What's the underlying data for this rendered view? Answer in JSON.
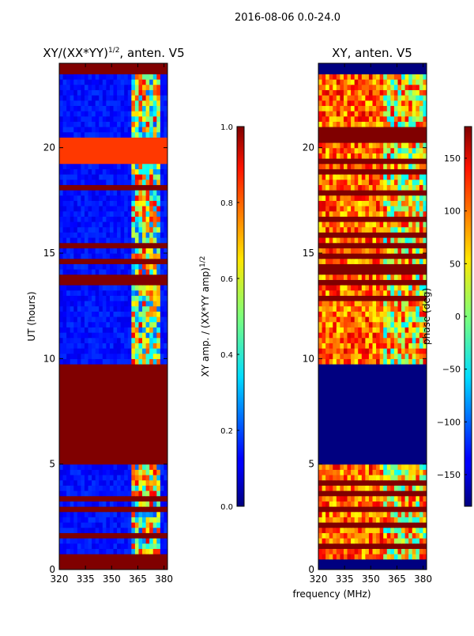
{
  "chart_data": {
    "type": "heatmap",
    "suptitle": "2016-08-06 0.0-24.0",
    "shared_xlabel": "frequency (MHz)",
    "panels": [
      {
        "title_main": "XY/(XX*YY)",
        "title_sup": "1/2",
        "title_tail": ", anten. V5",
        "ylabel": "UT (hours)",
        "xlim": [
          320,
          382
        ],
        "ylim": [
          0,
          24
        ],
        "xticks": [
          320,
          335,
          350,
          365,
          380
        ],
        "yticks": [
          0,
          5,
          10,
          15,
          20
        ],
        "colorbar": {
          "label_main": "XY amp. / (XX*YY amp)",
          "label_sup": "1/2",
          "range": [
            0.0,
            1.0
          ],
          "ticks": [
            "0.0",
            "0.2",
            "0.4",
            "0.6",
            "0.8",
            "1.0"
          ]
        },
        "blocks": [
          {
            "y0": 0.0,
            "y1": 0.5,
            "value": 1.0
          },
          {
            "y0": 5.1,
            "y1": 9.7,
            "value": 1.0
          },
          {
            "y0": 17.9,
            "y1": 18.3,
            "value": 1.0
          },
          {
            "y0": 19.3,
            "y1": 20.4,
            "value": 0.82
          },
          {
            "y0": 23.6,
            "y1": 24.0,
            "value": 1.0
          }
        ],
        "bright_band": {
          "x0": 362,
          "x1": 378,
          "value": 0.45
        }
      },
      {
        "title": "XY, anten. V5",
        "xlim": [
          320,
          382
        ],
        "ylim": [
          0,
          24
        ],
        "xticks": [
          320,
          335,
          350,
          365,
          380
        ],
        "yticks": [
          0,
          5,
          10,
          15,
          20
        ],
        "colorbar": {
          "label": "phase (deg)",
          "range": [
            -180,
            180
          ],
          "ticks": [
            "-150",
            "-100",
            "-50",
            "0",
            "50",
            "100",
            "150"
          ],
          "tick_values": [
            -150,
            -100,
            -50,
            0,
            50,
            100,
            150
          ]
        },
        "blocks": [
          {
            "y0": 0.0,
            "y1": 0.5,
            "value": -180
          },
          {
            "y0": 5.1,
            "y1": 9.7,
            "value": -180
          },
          {
            "y0": 23.6,
            "y1": 24.0,
            "value": -180
          }
        ],
        "bright_band": {
          "x0": 358,
          "x1": 382,
          "value": 20
        }
      }
    ]
  }
}
